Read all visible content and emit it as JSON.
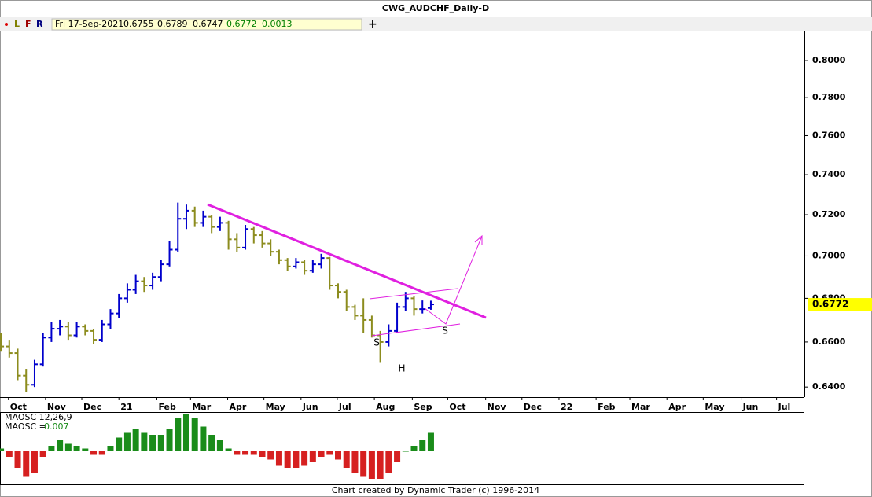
{
  "toolbar": {
    "buttons": [
      "L",
      "F",
      "R"
    ],
    "date": "Fri 17-Sep-2021",
    "change": 0.0013
  },
  "footer": "Chart created by Dynamic Trader  (c) 1996-2014",
  "chart_data": [
    {
      "type": "ohlc",
      "title": "CWG_AUDCHF_Daily-D",
      "log": true,
      "up_color": "#0000cc",
      "down_color": "#8c8c1e",
      "x": [
        -0.9,
        0.1,
        1.1,
        2.1,
        3.1,
        4.1,
        5.1,
        6.1,
        7.1,
        8.1,
        9.1,
        10.1,
        11.1,
        12.1,
        13.1,
        14.1,
        15.1,
        16.1,
        17.1,
        18.1,
        19.1,
        20.1,
        21.1,
        22.1,
        23.1,
        24.1,
        25.1,
        26.1,
        27.1,
        28.1,
        29.1,
        30.1,
        31.1,
        32.1,
        33.1,
        34.1,
        35.1,
        36.1,
        37.1,
        38.1,
        39.1,
        40.1,
        41.1,
        42.1,
        43.1,
        44.1,
        45.1,
        46.1,
        47.1,
        48.1,
        49.1,
        50.1
      ],
      "ohlc": [
        [
          0.662,
          0.664,
          0.656,
          0.658
        ],
        [
          0.658,
          0.661,
          0.653,
          0.655
        ],
        [
          0.655,
          0.657,
          0.643,
          0.645
        ],
        [
          0.645,
          0.648,
          0.638,
          0.641
        ],
        [
          0.641,
          0.652,
          0.64,
          0.65
        ],
        [
          0.65,
          0.664,
          0.649,
          0.662
        ],
        [
          0.662,
          0.669,
          0.66,
          0.666
        ],
        [
          0.666,
          0.67,
          0.663,
          0.667
        ],
        [
          0.667,
          0.669,
          0.661,
          0.663
        ],
        [
          0.663,
          0.669,
          0.662,
          0.667
        ],
        [
          0.667,
          0.668,
          0.663,
          0.665
        ],
        [
          0.665,
          0.666,
          0.659,
          0.661
        ],
        [
          0.661,
          0.67,
          0.66,
          0.668
        ],
        [
          0.668,
          0.675,
          0.666,
          0.673
        ],
        [
          0.673,
          0.682,
          0.671,
          0.68
        ],
        [
          0.68,
          0.687,
          0.678,
          0.684
        ],
        [
          0.684,
          0.691,
          0.682,
          0.688
        ],
        [
          0.688,
          0.69,
          0.683,
          0.686
        ],
        [
          0.686,
          0.692,
          0.684,
          0.69
        ],
        [
          0.69,
          0.698,
          0.688,
          0.696
        ],
        [
          0.696,
          0.707,
          0.695,
          0.703
        ],
        [
          0.703,
          0.726,
          0.702,
          0.718
        ],
        [
          0.718,
          0.725,
          0.713,
          0.722
        ],
        [
          0.722,
          0.724,
          0.714,
          0.716
        ],
        [
          0.716,
          0.722,
          0.714,
          0.719
        ],
        [
          0.719,
          0.72,
          0.711,
          0.714
        ],
        [
          0.714,
          0.719,
          0.712,
          0.716
        ],
        [
          0.716,
          0.717,
          0.703,
          0.708
        ],
        [
          0.708,
          0.711,
          0.702,
          0.704
        ],
        [
          0.704,
          0.715,
          0.703,
          0.713
        ],
        [
          0.713,
          0.714,
          0.706,
          0.71
        ],
        [
          0.71,
          0.712,
          0.704,
          0.706
        ],
        [
          0.706,
          0.708,
          0.7,
          0.702
        ],
        [
          0.702,
          0.703,
          0.696,
          0.698
        ],
        [
          0.698,
          0.699,
          0.693,
          0.695
        ],
        [
          0.695,
          0.699,
          0.694,
          0.697
        ],
        [
          0.697,
          0.698,
          0.691,
          0.693
        ],
        [
          0.693,
          0.698,
          0.692,
          0.696
        ],
        [
          0.696,
          0.701,
          0.694,
          0.699
        ],
        [
          0.699,
          0.6995,
          0.684,
          0.686
        ],
        [
          0.686,
          0.687,
          0.68,
          0.683
        ],
        [
          0.683,
          0.684,
          0.674,
          0.676
        ],
        [
          0.676,
          0.677,
          0.67,
          0.672
        ],
        [
          0.672,
          0.68,
          0.664,
          0.67
        ],
        [
          0.67,
          0.672,
          0.662,
          0.663
        ],
        [
          0.663,
          0.665,
          0.651,
          0.66
        ],
        [
          0.66,
          0.668,
          0.658,
          0.665
        ],
        [
          0.665,
          0.678,
          0.664,
          0.676
        ],
        [
          0.676,
          0.683,
          0.674,
          0.68
        ],
        [
          0.68,
          0.681,
          0.672,
          0.675
        ],
        [
          0.675,
          0.679,
          0.673,
          0.675
        ],
        [
          0.6755,
          0.6789,
          0.6747,
          0.6772
        ]
      ],
      "xlim": [
        -1,
        94.4
      ],
      "xticks": [
        {
          "value": 0,
          "label": "Oct"
        },
        {
          "value": 4.4,
          "label": "Nov"
        },
        {
          "value": 8.7,
          "label": "Dec"
        },
        {
          "value": 13.1,
          "label": "21"
        },
        {
          "value": 17.6,
          "label": "Feb"
        },
        {
          "value": 21.6,
          "label": "Mar"
        },
        {
          "value": 26,
          "label": "Apr"
        },
        {
          "value": 30.3,
          "label": "May"
        },
        {
          "value": 34.7,
          "label": "Jun"
        },
        {
          "value": 39,
          "label": "Jul"
        },
        {
          "value": 43.4,
          "label": "Aug"
        },
        {
          "value": 47.9,
          "label": "Sep"
        },
        {
          "value": 52.1,
          "label": "Oct"
        },
        {
          "value": 56.6,
          "label": "Nov"
        },
        {
          "value": 60.9,
          "label": "Dec"
        },
        {
          "value": 65.3,
          "label": "22"
        },
        {
          "value": 69.7,
          "label": "Feb"
        },
        {
          "value": 73.7,
          "label": "Mar"
        },
        {
          "value": 78.1,
          "label": "Apr"
        },
        {
          "value": 82.4,
          "label": "May"
        },
        {
          "value": 86.9,
          "label": "Jun"
        },
        {
          "value": 91.1,
          "label": "Jul"
        }
      ],
      "ylim": [
        0.6356,
        0.8065
      ],
      "yticks": [
        {
          "value": 0.64,
          "label": "0.6400"
        },
        {
          "value": 0.66,
          "label": "0.6600"
        },
        {
          "value": 0.68,
          "label": "0.6800"
        },
        {
          "value": 0.7,
          "label": "0.7000"
        },
        {
          "value": 0.72,
          "label": "0.7200"
        },
        {
          "value": 0.74,
          "label": "0.7400"
        },
        {
          "value": 0.76,
          "label": "0.7600"
        },
        {
          "value": 0.78,
          "label": "0.7800"
        },
        {
          "value": 0.8,
          "label": "0.8000"
        }
      ],
      "annotations": [
        "S",
        "H",
        "S"
      ]
    },
    {
      "type": "bar",
      "title": "MAOSC 12,26,9",
      "value_prefix": "MAOSC =",
      "pos_color": "#1a8c1a",
      "neg_color": "#d62020",
      "x": [
        -0.9,
        0.1,
        1.1,
        2.1,
        3.1,
        4.1,
        5.1,
        6.1,
        7.1,
        8.1,
        9.1,
        10.1,
        11.1,
        12.1,
        13.1,
        14.1,
        15.1,
        16.1,
        17.1,
        18.1,
        19.1,
        20.1,
        21.1,
        22.1,
        23.1,
        24.1,
        25.1,
        26.1,
        27.1,
        28.1,
        29.1,
        30.1,
        31.1,
        32.1,
        33.1,
        34.1,
        35.1,
        36.1,
        37.1,
        38.1,
        39.1,
        40.1,
        41.1,
        42.1,
        43.1,
        44.1,
        45.1,
        46.1,
        47.1,
        48.1,
        49.1,
        50.1
      ],
      "values": [
        0.001,
        -0.002,
        -0.006,
        -0.009,
        -0.008,
        -0.002,
        0.002,
        0.004,
        0.003,
        0.002,
        0.001,
        -0.001,
        -0.001,
        0.002,
        0.005,
        0.007,
        0.008,
        0.007,
        0.006,
        0.006,
        0.008,
        0.012,
        0.0135,
        0.012,
        0.009,
        0.006,
        0.004,
        0.001,
        -0.001,
        -0.001,
        -0.001,
        -0.002,
        -0.003,
        -0.005,
        -0.006,
        -0.006,
        -0.005,
        -0.004,
        -0.002,
        -0.001,
        -0.003,
        -0.006,
        -0.008,
        -0.009,
        -0.01,
        -0.01,
        -0.008,
        -0.004,
        0,
        0.002,
        0.004,
        0.007
      ],
      "ylim": [
        -0.012,
        0.014
      ]
    }
  ]
}
